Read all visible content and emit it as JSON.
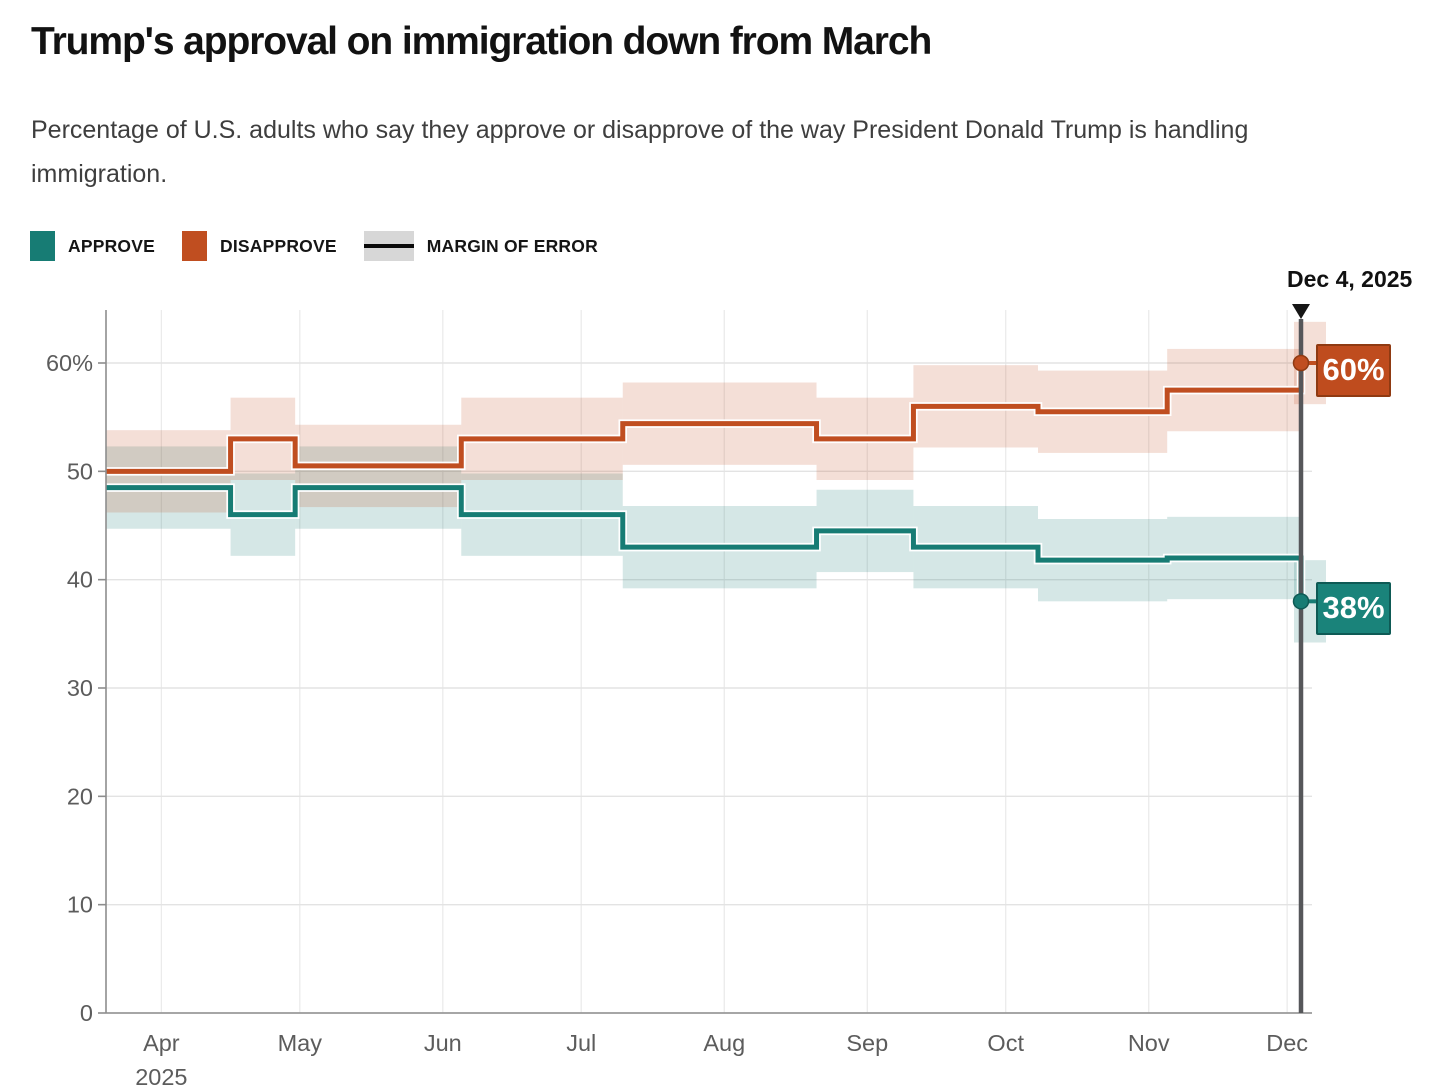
{
  "header": {
    "title": "Trump's approval on immigration down from March",
    "subtitle": "Percentage of U.S. adults who say they approve or disapprove of the way President Donald Trump is handling immigration."
  },
  "legend": [
    {
      "label": "APPROVE",
      "swatch": "square",
      "color": "#177c74"
    },
    {
      "label": "DISAPPROVE",
      "swatch": "square",
      "color": "#c04e20"
    },
    {
      "label": "MARGIN OF ERROR",
      "swatch": "band",
      "color": "#d7d7d7",
      "line_color": "#0a0a0a"
    }
  ],
  "annotation": {
    "date_label": "Dec 4, 2025"
  },
  "end_labels": {
    "approve": "38%",
    "disapprove": "60%"
  },
  "chart_data": {
    "type": "line",
    "variant": "step-after",
    "title": "Trump's approval on immigration down from March",
    "xlabel": "",
    "ylabel": "",
    "grid": true,
    "legend_position": "top-left",
    "x_range": [
      "2025-03-20",
      "2025-12-04"
    ],
    "ylim": [
      0,
      65
    ],
    "moe": 3.8,
    "y_ticks": [
      {
        "value": 0,
        "label": "0"
      },
      {
        "value": 10,
        "label": "10"
      },
      {
        "value": 20,
        "label": "20"
      },
      {
        "value": 30,
        "label": "30"
      },
      {
        "value": 40,
        "label": "40"
      },
      {
        "value": 50,
        "label": "50"
      },
      {
        "value": 60,
        "label": "60%"
      }
    ],
    "x_ticks": [
      {
        "date": "2025-04-01",
        "label": "Apr",
        "sublabel": "2025"
      },
      {
        "date": "2025-05-01",
        "label": "May"
      },
      {
        "date": "2025-06-01",
        "label": "Jun"
      },
      {
        "date": "2025-07-01",
        "label": "Jul"
      },
      {
        "date": "2025-08-01",
        "label": "Aug"
      },
      {
        "date": "2025-09-01",
        "label": "Sep"
      },
      {
        "date": "2025-10-01",
        "label": "Oct"
      },
      {
        "date": "2025-11-01",
        "label": "Nov"
      },
      {
        "date": "2025-12-01",
        "label": "Dec"
      }
    ],
    "series": [
      {
        "name": "APPROVE",
        "color": "#177c74",
        "band_color": "rgba(23,124,116,0.18)",
        "label_bg": "#1a837a",
        "label_border": "#0e5a55",
        "end_value_label": "38%",
        "points": [
          [
            "2025-03-20",
            48.5
          ],
          [
            "2025-04-16",
            46
          ],
          [
            "2025-04-30",
            48.5
          ],
          [
            "2025-06-05",
            46
          ],
          [
            "2025-07-10",
            43
          ],
          [
            "2025-08-21",
            44.5
          ],
          [
            "2025-09-11",
            43
          ],
          [
            "2025-10-08",
            41.8
          ],
          [
            "2025-11-05",
            42
          ],
          [
            "2025-12-04",
            38
          ]
        ]
      },
      {
        "name": "DISAPPROVE",
        "color": "#c04e20",
        "band_color": "rgba(192,78,32,0.18)",
        "label_bg": "#bf4c1e",
        "label_border": "#8f3a12",
        "end_value_label": "60%",
        "points": [
          [
            "2025-03-20",
            50
          ],
          [
            "2025-04-16",
            53
          ],
          [
            "2025-04-30",
            50.5
          ],
          [
            "2025-06-05",
            53
          ],
          [
            "2025-07-10",
            54.4
          ],
          [
            "2025-08-21",
            53
          ],
          [
            "2025-09-11",
            56
          ],
          [
            "2025-10-08",
            55.5
          ],
          [
            "2025-11-05",
            57.5
          ],
          [
            "2025-12-04",
            60
          ]
        ]
      }
    ],
    "annotation_line": {
      "date": "2025-12-04",
      "label": "Dec 4, 2025",
      "line_color": "#56575a",
      "marker_color": "#161616"
    },
    "style": {
      "grid_color": "#e3e3e3",
      "vgrid_color": "#ebebeb",
      "axis_color": "#8d8d8d",
      "tick_text_color": "#5c5c5c"
    }
  }
}
